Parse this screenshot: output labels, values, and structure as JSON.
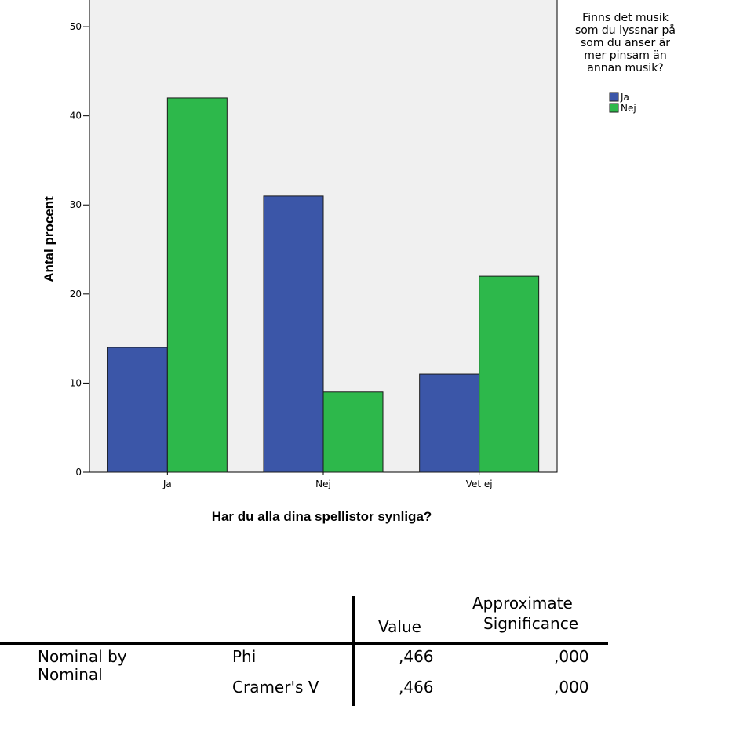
{
  "chart_data": {
    "type": "bar",
    "categories": [
      "Ja",
      "Nej",
      "Vet ej"
    ],
    "series": [
      {
        "name": "Ja",
        "color": "#3b56a8",
        "values": [
          14,
          31,
          11
        ]
      },
      {
        "name": "Nej",
        "color": "#2db84b",
        "values": [
          42,
          9,
          22
        ]
      }
    ],
    "xlabel": "Har du alla dina spellistor synliga?",
    "ylabel": "Antal procent",
    "ylim": [
      0,
      53
    ],
    "yticks": [
      0,
      10,
      20,
      30,
      40,
      50
    ],
    "plot_background": "#f0f0f0",
    "legend": {
      "title_lines": [
        "Finns det musik",
        "som du lyssnar på",
        "som du anser är",
        "mer pinsam än",
        "annan musik?"
      ],
      "placement": "top-right"
    }
  },
  "stats_table": {
    "headers": {
      "value": "Value",
      "significance_line1": "Approximate",
      "significance_line2": "Significance"
    },
    "row_group": {
      "line1": "Nominal by",
      "line2": "Nominal"
    },
    "rows": [
      {
        "measure": "Phi",
        "value": ",466",
        "significance": ",000"
      },
      {
        "measure": "Cramer's V",
        "value": ",466",
        "significance": ",000"
      }
    ]
  }
}
